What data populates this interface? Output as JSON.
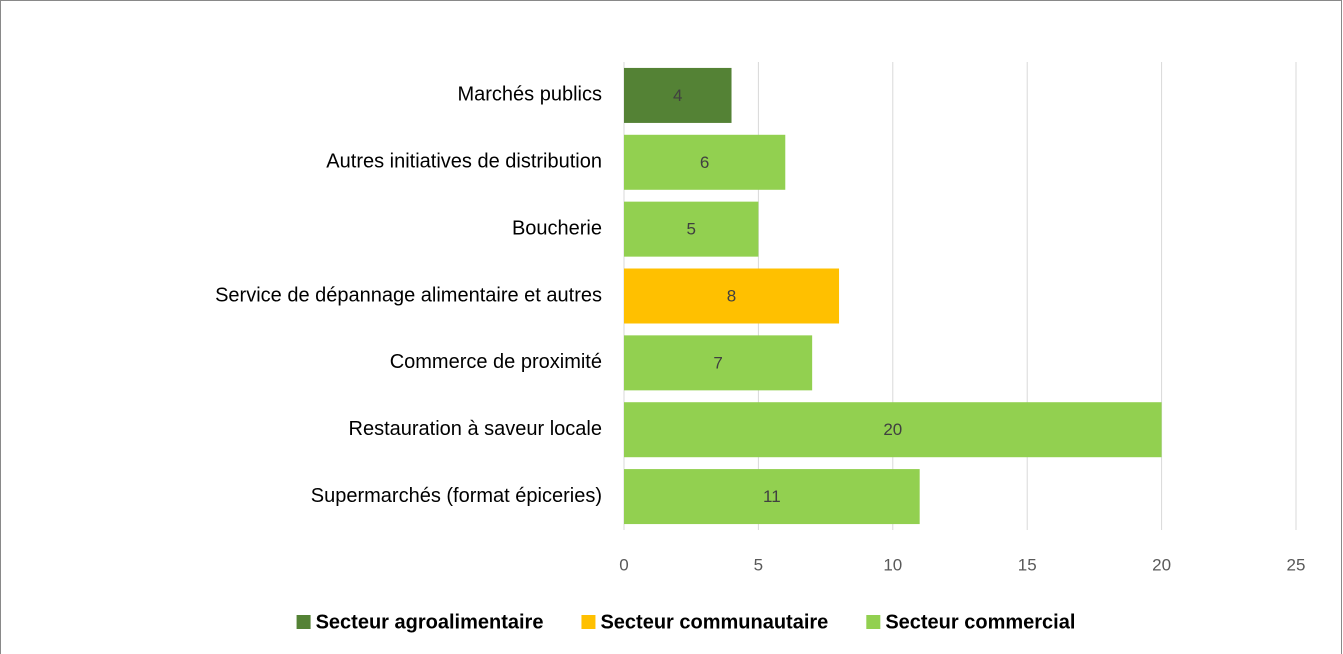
{
  "chart_data": {
    "type": "bar",
    "orientation": "horizontal",
    "categories": [
      "Marchés publics",
      "Autres initiatives de distribution",
      "Boucherie",
      "Service de dépannage alimentaire et autres",
      "Commerce de proximité",
      "Restauration à saveur locale",
      "Supermarchés (format épiceries)"
    ],
    "series": [
      {
        "name": "Secteur agroalimentaire",
        "color": "#548235",
        "values": [
          4,
          null,
          null,
          null,
          null,
          null,
          null
        ]
      },
      {
        "name": "Secteur communautaire",
        "color": "#ffc000",
        "values": [
          null,
          null,
          null,
          8,
          null,
          null,
          null
        ]
      },
      {
        "name": "Secteur commercial",
        "color": "#92d050",
        "values": [
          null,
          6,
          5,
          null,
          7,
          20,
          11
        ]
      }
    ],
    "xlim": [
      0,
      25
    ],
    "xticks": [
      0,
      5,
      10,
      15,
      20,
      25
    ],
    "grid": true,
    "legend": "bottom"
  }
}
